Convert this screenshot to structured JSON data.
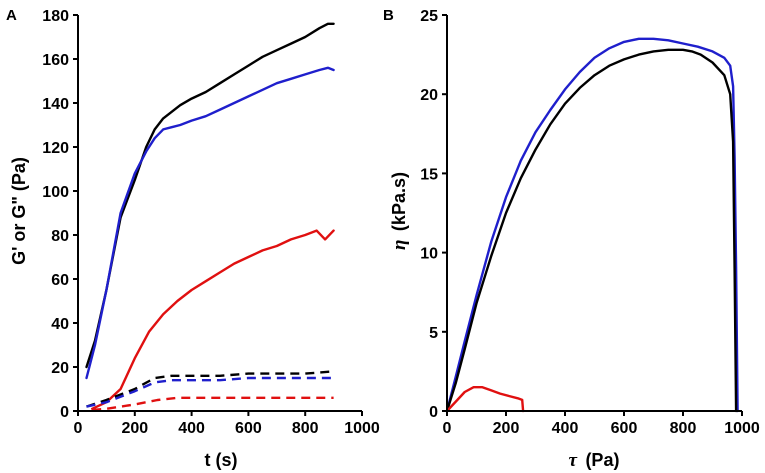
{
  "chart_data": [
    {
      "panel_label": "A",
      "type": "line",
      "xlabel": "t (s)",
      "ylabel": "G' or G\" (Pa)",
      "xlim": [
        0,
        1000
      ],
      "ylim": [
        0,
        180
      ],
      "xticks": [
        "0",
        "200",
        "400",
        "600",
        "800",
        "1000"
      ],
      "yticks": [
        "0",
        "20",
        "40",
        "60",
        "80",
        "100",
        "120",
        "140",
        "160",
        "180"
      ],
      "series": [
        {
          "name": "G' black",
          "color": "#000000",
          "dash": false,
          "x": [
            30,
            60,
            100,
            150,
            200,
            240,
            270,
            300,
            330,
            360,
            400,
            450,
            500,
            550,
            600,
            650,
            700,
            750,
            800,
            850,
            880,
            900
          ],
          "y": [
            20,
            32,
            55,
            88,
            105,
            120,
            128,
            133,
            136,
            139,
            142,
            145,
            149,
            153,
            157,
            161,
            164,
            167,
            170,
            174,
            176,
            176
          ]
        },
        {
          "name": "G' blue",
          "color": "#1f1fcc",
          "dash": false,
          "x": [
            30,
            60,
            100,
            150,
            200,
            240,
            270,
            300,
            330,
            360,
            400,
            450,
            500,
            550,
            600,
            650,
            700,
            750,
            800,
            850,
            880,
            900
          ],
          "y": [
            15,
            30,
            55,
            90,
            108,
            118,
            124,
            128,
            129,
            130,
            132,
            134,
            137,
            140,
            143,
            146,
            149,
            151,
            153,
            155,
            156,
            155
          ]
        },
        {
          "name": "G' red",
          "color": "#e01010",
          "dash": false,
          "x": [
            50,
            100,
            150,
            200,
            250,
            300,
            350,
            400,
            450,
            500,
            550,
            600,
            650,
            700,
            750,
            800,
            840,
            870,
            900
          ],
          "y": [
            1,
            4,
            10,
            24,
            36,
            44,
            50,
            55,
            59,
            63,
            67,
            70,
            73,
            75,
            78,
            80,
            82,
            78,
            82
          ]
        },
        {
          "name": "G\" black",
          "color": "#000000",
          "dash": true,
          "x": [
            30,
            100,
            200,
            270,
            330,
            400,
            500,
            600,
            700,
            800,
            900
          ],
          "y": [
            2,
            5,
            10,
            15,
            16,
            16,
            16,
            17,
            17,
            17,
            18
          ]
        },
        {
          "name": "G\" blue",
          "color": "#1f1fcc",
          "dash": true,
          "x": [
            30,
            100,
            200,
            270,
            330,
            400,
            500,
            600,
            700,
            800,
            900
          ],
          "y": [
            2,
            4,
            9,
            13,
            14,
            14,
            14,
            15,
            15,
            15,
            15
          ]
        },
        {
          "name": "G\" red",
          "color": "#e01010",
          "dash": true,
          "x": [
            50,
            100,
            200,
            280,
            350,
            450,
            550,
            650,
            750,
            850,
            900
          ],
          "y": [
            0.5,
            1,
            3,
            5,
            6,
            6,
            6,
            6,
            6,
            6,
            6
          ]
        }
      ]
    },
    {
      "panel_label": "B",
      "type": "line",
      "xlabel_sym": "τ",
      "xlabel": "(Pa)",
      "ylabel_sym": "η",
      "ylabel": "(kPa.s)",
      "xlim": [
        0,
        1000
      ],
      "ylim": [
        0,
        25
      ],
      "xticks": [
        "0",
        "200",
        "400",
        "600",
        "800",
        "1000"
      ],
      "yticks": [
        "0",
        "5",
        "10",
        "15",
        "20",
        "25"
      ],
      "series": [
        {
          "name": "η blue",
          "color": "#1f1fcc",
          "dash": false,
          "x": [
            0,
            30,
            60,
            100,
            150,
            200,
            250,
            300,
            350,
            400,
            450,
            500,
            550,
            600,
            650,
            700,
            750,
            800,
            850,
            900,
            940,
            960,
            970,
            975,
            980,
            985
          ],
          "y": [
            0,
            2.2,
            4.4,
            7.3,
            10.7,
            13.5,
            15.8,
            17.6,
            19.0,
            20.3,
            21.4,
            22.3,
            22.9,
            23.3,
            23.5,
            23.5,
            23.4,
            23.2,
            23.0,
            22.7,
            22.3,
            21.8,
            20.5,
            16,
            9,
            0
          ]
        },
        {
          "name": "η black",
          "color": "#000000",
          "dash": false,
          "x": [
            0,
            30,
            60,
            100,
            150,
            200,
            250,
            300,
            350,
            400,
            450,
            500,
            550,
            600,
            650,
            700,
            750,
            800,
            830,
            860,
            900,
            940,
            960,
            970,
            975,
            980
          ],
          "y": [
            0,
            1.8,
            3.9,
            6.8,
            9.8,
            12.5,
            14.7,
            16.5,
            18.1,
            19.4,
            20.4,
            21.2,
            21.8,
            22.2,
            22.5,
            22.7,
            22.8,
            22.8,
            22.7,
            22.5,
            22.0,
            21.2,
            20.0,
            17,
            9,
            0
          ]
        },
        {
          "name": "η red",
          "color": "#e01010",
          "dash": false,
          "x": [
            0,
            30,
            60,
            90,
            120,
            150,
            180,
            210,
            240,
            255,
            258
          ],
          "y": [
            0,
            0.6,
            1.2,
            1.5,
            1.5,
            1.3,
            1.1,
            0.95,
            0.8,
            0.7,
            0
          ]
        }
      ]
    }
  ]
}
